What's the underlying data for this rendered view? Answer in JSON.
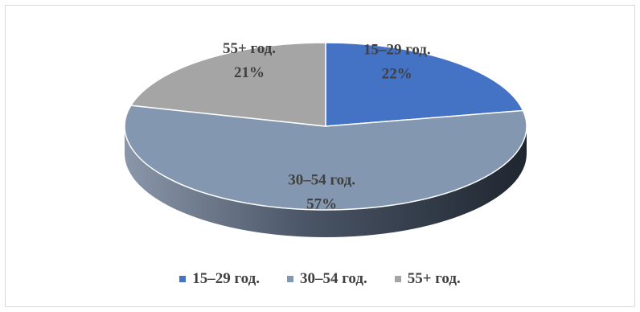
{
  "chart_data": {
    "type": "pie",
    "slices": [
      {
        "label": "15‒29 год.",
        "percent_label": "22%",
        "value": 22,
        "color": "#4472C4"
      },
      {
        "label": "30‒54 год.",
        "percent_label": "57%",
        "value": 57,
        "color": "#8497B0"
      },
      {
        "label": "55+ год.",
        "percent_label": "21%",
        "value": 21,
        "color": "#A5A5A5"
      }
    ],
    "legend_position": "bottom",
    "style": "3d-pie"
  }
}
